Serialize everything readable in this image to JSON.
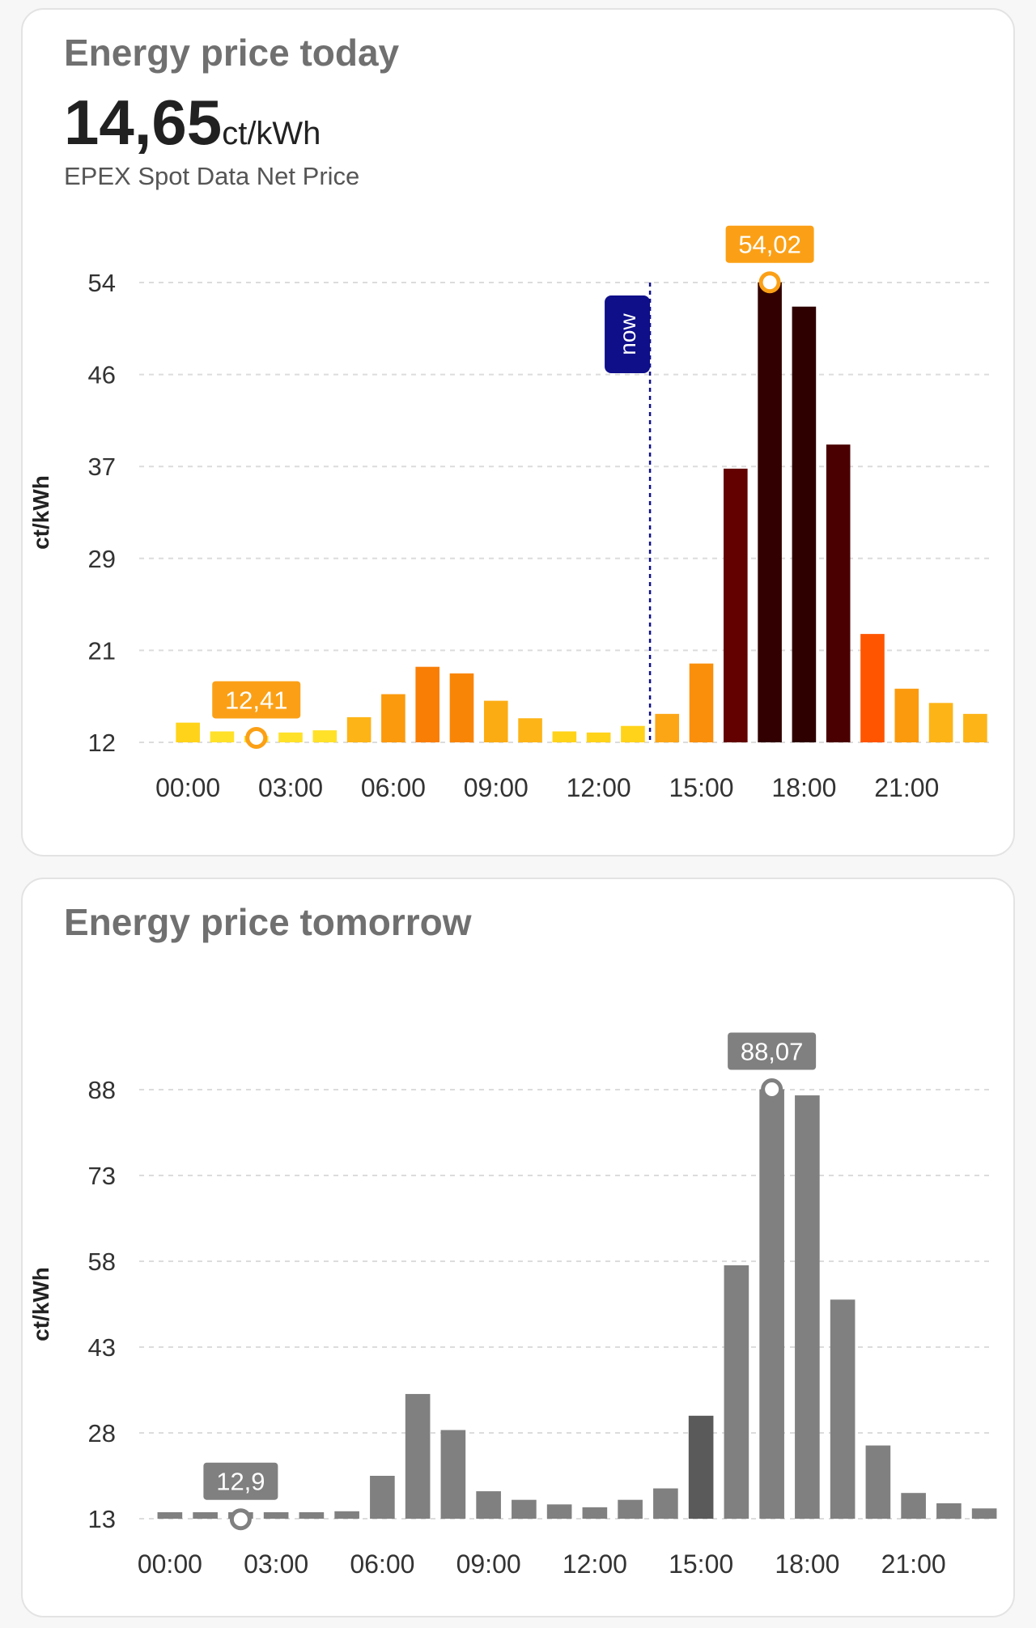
{
  "cards": {
    "today": {
      "title": "Energy price today",
      "current_value": "14,65",
      "current_unit": "ct/kWh",
      "subtitle": "EPEX Spot Data Net Price"
    },
    "tomorrow": {
      "title": "Energy price tomorrow"
    }
  },
  "chart_data": [
    {
      "type": "bar",
      "title": "Energy price today",
      "ylabel": "ct/kWh",
      "xlabel": "",
      "ylim": [
        12,
        54
      ],
      "y_ticks": [
        "12",
        "21",
        "29",
        "37",
        "46",
        "54"
      ],
      "x_tick_labels": [
        "00:00",
        "03:00",
        "06:00",
        "09:00",
        "12:00",
        "15:00",
        "18:00",
        "21:00"
      ],
      "categories": [
        "00:00",
        "01:00",
        "02:00",
        "03:00",
        "04:00",
        "05:00",
        "06:00",
        "07:00",
        "08:00",
        "09:00",
        "10:00",
        "11:00",
        "12:00",
        "13:00",
        "14:00",
        "15:00",
        "16:00",
        "17:00",
        "18:00",
        "19:00",
        "20:00",
        "21:00",
        "22:00",
        "23:00"
      ],
      "values": [
        13.8,
        13.0,
        12.41,
        12.9,
        13.1,
        14.3,
        16.4,
        18.9,
        18.3,
        15.8,
        14.2,
        13.0,
        12.9,
        13.5,
        14.6,
        19.2,
        37.0,
        54.02,
        51.8,
        39.2,
        21.9,
        16.9,
        15.6,
        14.6
      ],
      "bar_colors": [
        "#ffd31a",
        "#ffe12a",
        "#ffe12a",
        "#ffe12a",
        "#ffe12a",
        "#fdb417",
        "#fb9a0c",
        "#f97e06",
        "#f98506",
        "#fbac13",
        "#fdb417",
        "#ffd31a",
        "#ffd31a",
        "#ffd31a",
        "#fca616",
        "#f98f0b",
        "#630000",
        "#320000",
        "#2e0000",
        "#4a0000",
        "#ff5500",
        "#fb9a0c",
        "#fdb417",
        "#fdb417"
      ],
      "grid": true,
      "now_marker": {
        "label": "now",
        "x": "14:00",
        "color": "#0f0f8a"
      },
      "min_marker": {
        "label": "12,41",
        "x": "02:00",
        "value": 12.41,
        "color": "#fba016"
      },
      "max_marker": {
        "label": "54,02",
        "x": "17:00",
        "value": 54.02,
        "color": "#fba016"
      }
    },
    {
      "type": "bar",
      "title": "Energy price tomorrow",
      "ylabel": "ct/kWh",
      "xlabel": "",
      "ylim": [
        13,
        88
      ],
      "y_ticks": [
        "13",
        "28",
        "43",
        "58",
        "73",
        "88"
      ],
      "x_tick_labels": [
        "00:00",
        "03:00",
        "06:00",
        "09:00",
        "12:00",
        "15:00",
        "18:00",
        "21:00"
      ],
      "categories": [
        "00:00",
        "01:00",
        "02:00",
        "03:00",
        "04:00",
        "05:00",
        "06:00",
        "07:00",
        "08:00",
        "09:00",
        "10:00",
        "11:00",
        "12:00",
        "13:00",
        "14:00",
        "15:00",
        "16:00",
        "17:00",
        "18:00",
        "19:00",
        "20:00",
        "21:00",
        "22:00",
        "23:00"
      ],
      "values": [
        14.0,
        13.3,
        12.9,
        13.3,
        13.5,
        14.3,
        20.5,
        34.8,
        28.5,
        17.8,
        16.3,
        15.5,
        15.0,
        16.3,
        18.3,
        31.0,
        57.3,
        88.07,
        87.0,
        51.3,
        25.8,
        17.5,
        15.7,
        14.8
      ],
      "bar_colors": [
        "#808080",
        "#808080",
        "#808080",
        "#808080",
        "#808080",
        "#808080",
        "#808080",
        "#808080",
        "#808080",
        "#808080",
        "#808080",
        "#808080",
        "#808080",
        "#808080",
        "#808080",
        "#5a5a5a",
        "#808080",
        "#808080",
        "#808080",
        "#808080",
        "#808080",
        "#808080",
        "#808080",
        "#808080"
      ],
      "grid": true,
      "min_marker": {
        "label": "12,9",
        "x": "02:00",
        "value": 12.9,
        "color": "#808080"
      },
      "max_marker": {
        "label": "88,07",
        "x": "17:00",
        "value": 88.07,
        "color": "#808080"
      }
    }
  ]
}
